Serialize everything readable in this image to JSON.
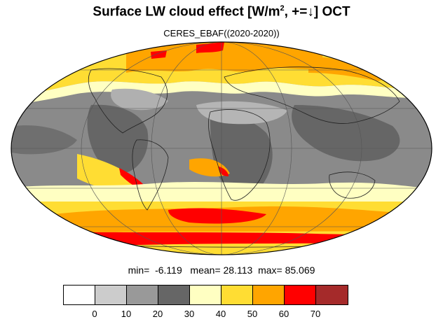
{
  "title": {
    "main": "Surface LW cloud effect [W/m",
    "sup": "2",
    "rest": ", +=↓]  OCT"
  },
  "subtitle": "CERES_EBAF((2020-2020))",
  "stats": {
    "min_label": "min=",
    "min_value": "-6.119",
    "mean_label": "mean=",
    "mean_value": "28.113",
    "max_label": "max=",
    "max_value": "85.069"
  },
  "colorbar": {
    "colors": [
      "#ffffff",
      "#cccccc",
      "#999999",
      "#666666",
      "#ffffc2",
      "#ffdd33",
      "#ffa500",
      "#ff0000",
      "#a52a2a"
    ],
    "ticks": [
      "0",
      "10",
      "20",
      "30",
      "40",
      "50",
      "60",
      "70"
    ]
  },
  "map": {
    "projection": "Mollweide",
    "colors": {
      "ocean_gray": "#808080",
      "land_gray": "#a0a0a0",
      "dark_gray": "#666666",
      "pale_yellow": "#ffffc2",
      "yellow": "#ffdd33",
      "orange": "#ffa500",
      "red": "#ff0000",
      "coast": "#222222"
    }
  }
}
